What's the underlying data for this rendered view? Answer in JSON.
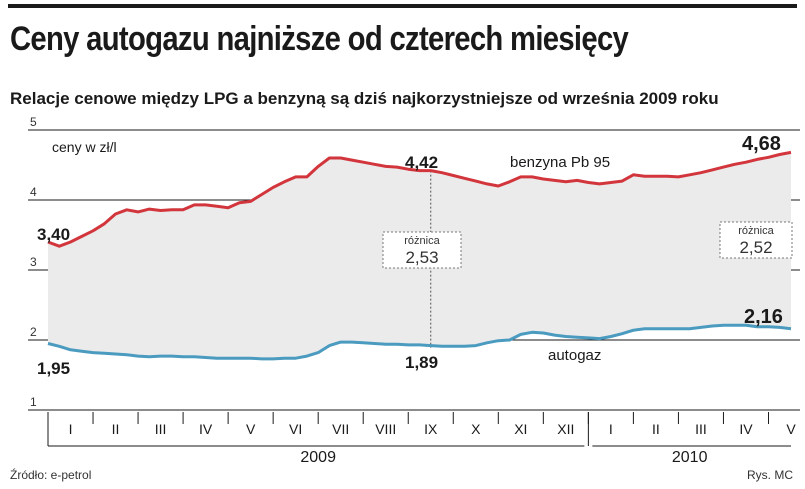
{
  "header": {
    "title": "Ceny autogazu najniższe od czterech miesięcy",
    "subtitle": "Relacje cenowe między LPG a benzyną są dziś najkorzystniejsze od września 2009 roku"
  },
  "footer": {
    "source": "Źródło: e-petrol",
    "credit": "Rys. MC"
  },
  "colors": {
    "benzyna": "#d2363c",
    "autogaz": "#4a9bbf",
    "fill": "#ebebeb",
    "grid": "#1a1a1a"
  },
  "chart_data": {
    "type": "line",
    "ylabel": "ceny w zł/l",
    "ylim": [
      1,
      5
    ],
    "yticks": [
      "1",
      "2",
      "3",
      "4",
      "5"
    ],
    "months": [
      "I",
      "II",
      "III",
      "IV",
      "V",
      "VI",
      "VII",
      "VIII",
      "IX",
      "X",
      "XI",
      "XII",
      "I",
      "II",
      "III",
      "IV",
      "V"
    ],
    "years": [
      "2009",
      "2010"
    ],
    "series": [
      {
        "name": "benzyna Pb 95",
        "values": [
          3.4,
          3.34,
          3.4,
          3.48,
          3.56,
          3.66,
          3.8,
          3.86,
          3.83,
          3.87,
          3.85,
          3.86,
          3.86,
          3.93,
          3.93,
          3.91,
          3.89,
          3.96,
          3.98,
          4.08,
          4.18,
          4.26,
          4.33,
          4.33,
          4.48,
          4.6,
          4.6,
          4.57,
          4.54,
          4.51,
          4.48,
          4.47,
          4.44,
          4.42,
          4.42,
          4.39,
          4.35,
          4.31,
          4.27,
          4.23,
          4.2,
          4.26,
          4.33,
          4.33,
          4.3,
          4.28,
          4.26,
          4.28,
          4.25,
          4.23,
          4.25,
          4.27,
          4.36,
          4.34,
          4.34,
          4.34,
          4.33,
          4.36,
          4.39,
          4.43,
          4.47,
          4.51,
          4.54,
          4.58,
          4.61,
          4.65,
          4.68
        ]
      },
      {
        "name": "autogaz",
        "values": [
          1.95,
          1.91,
          1.86,
          1.84,
          1.82,
          1.81,
          1.8,
          1.79,
          1.77,
          1.76,
          1.77,
          1.77,
          1.76,
          1.76,
          1.75,
          1.74,
          1.74,
          1.74,
          1.74,
          1.73,
          1.73,
          1.74,
          1.74,
          1.77,
          1.82,
          1.92,
          1.97,
          1.97,
          1.96,
          1.95,
          1.94,
          1.94,
          1.93,
          1.93,
          1.92,
          1.91,
          1.91,
          1.91,
          1.92,
          1.96,
          1.99,
          2.0,
          2.08,
          2.11,
          2.1,
          2.07,
          2.05,
          2.04,
          2.03,
          2.02,
          2.05,
          2.09,
          2.14,
          2.16,
          2.16,
          2.16,
          2.16,
          2.16,
          2.18,
          2.2,
          2.21,
          2.21,
          2.21,
          2.19,
          2.19,
          2.18,
          2.16
        ]
      }
    ],
    "series_labels": {
      "benzyna": "benzyna Pb 95",
      "autogaz": "autogaz"
    },
    "point_labels": {
      "benzyna_start": "3,40",
      "benzyna_sep": "4,42",
      "benzyna_end": "4,68",
      "autogaz_start": "1,95",
      "autogaz_sep": "1,89",
      "autogaz_end": "2,16"
    },
    "annotations": [
      {
        "month": "IX 2009",
        "label": "różnica",
        "value": "2,53"
      },
      {
        "month": "V 2010",
        "label": "różnica",
        "value": "2,52"
      }
    ]
  }
}
